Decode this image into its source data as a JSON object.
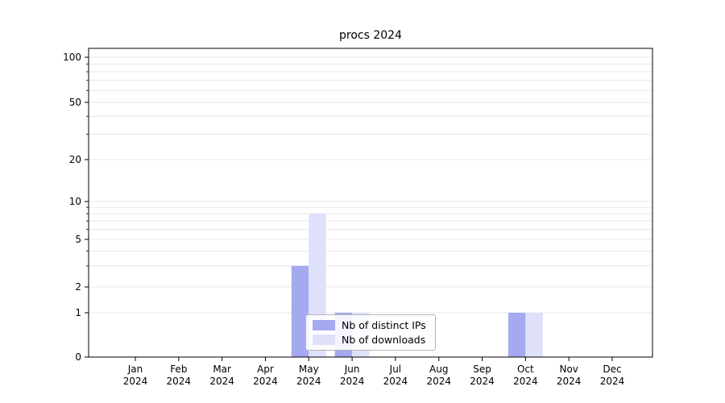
{
  "chart_data": {
    "type": "bar",
    "title": "procs 2024",
    "categories": [
      "Jan",
      "Feb",
      "Mar",
      "Apr",
      "May",
      "Jun",
      "Jul",
      "Aug",
      "Sep",
      "Oct",
      "Nov",
      "Dec"
    ],
    "year": "2024",
    "series": [
      {
        "name": "Nb of distinct IPs",
        "color": "#a5aaf0",
        "values": [
          0,
          0,
          0,
          0,
          3,
          1,
          0,
          0,
          0,
          1,
          0,
          0
        ]
      },
      {
        "name": "Nb of downloads",
        "color": "#dfe1fb",
        "values": [
          0,
          0,
          0,
          0,
          8,
          1,
          0,
          0,
          0,
          1,
          0,
          0
        ]
      }
    ],
    "yticks": [
      0,
      1,
      2,
      5,
      10,
      20,
      50,
      100
    ],
    "ylim": [
      0,
      120
    ],
    "yscale": "log-with-zero",
    "grid": "horizontal-minor",
    "legend_position": "lower-center-inside"
  }
}
